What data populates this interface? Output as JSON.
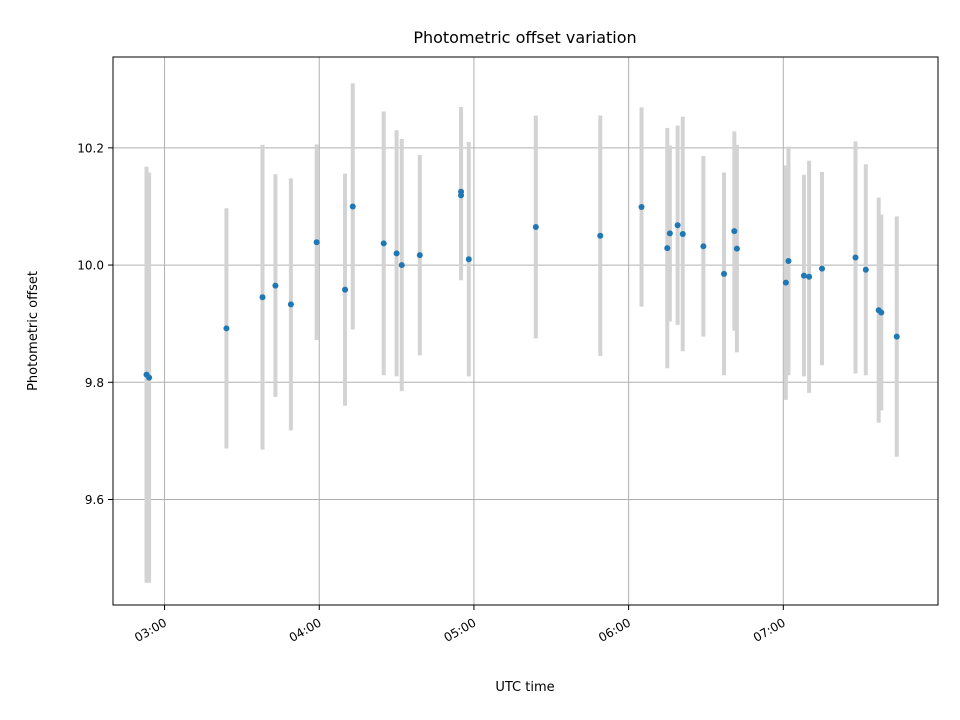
{
  "chart_data": {
    "type": "scatter",
    "title": "Photometric offset variation",
    "xlabel": "UTC time",
    "ylabel": "Photometric offset",
    "xlim": [
      "02:40",
      "08:00"
    ],
    "ylim": [
      9.42,
      10.355
    ],
    "grid": true,
    "legend": "none",
    "x_ticks": [
      "03:00",
      "04:00",
      "05:00",
      "06:00",
      "07:00"
    ],
    "y_ticks": [
      9.6,
      9.8,
      10.0,
      10.2
    ],
    "colors": {
      "marker": "#1f77b4",
      "errorbar": "#d3d3d3",
      "grid": "#b0b0b0"
    },
    "points": [
      {
        "t": "02:53",
        "y": 9.813,
        "err": 0.355
      },
      {
        "t": "02:54",
        "y": 9.808,
        "err": 0.35
      },
      {
        "t": "03:24",
        "y": 9.892,
        "err": 0.205
      },
      {
        "t": "03:38",
        "y": 9.945,
        "err": 0.26
      },
      {
        "t": "03:43",
        "y": 9.965,
        "err": 0.19
      },
      {
        "t": "03:49",
        "y": 9.933,
        "err": 0.215
      },
      {
        "t": "03:59",
        "y": 10.039,
        "err": 0.167
      },
      {
        "t": "04:10",
        "y": 9.958,
        "err": 0.198
      },
      {
        "t": "04:13",
        "y": 10.1,
        "err": 0.21
      },
      {
        "t": "04:25",
        "y": 10.037,
        "err": 0.225
      },
      {
        "t": "04:30",
        "y": 10.02,
        "err": 0.21
      },
      {
        "t": "04:32",
        "y": 10.0,
        "err": 0.215
      },
      {
        "t": "04:39",
        "y": 10.017,
        "err": 0.171
      },
      {
        "t": "04:55",
        "y": 10.125,
        "err": 0.145
      },
      {
        "t": "04:55",
        "y": 10.119,
        "err": 0.145
      },
      {
        "t": "04:58",
        "y": 10.01,
        "err": 0.2
      },
      {
        "t": "05:24",
        "y": 10.065,
        "err": 0.19
      },
      {
        "t": "05:49",
        "y": 10.05,
        "err": 0.205
      },
      {
        "t": "06:05",
        "y": 10.099,
        "err": 0.17
      },
      {
        "t": "06:15",
        "y": 10.029,
        "err": 0.205
      },
      {
        "t": "06:16",
        "y": 10.054,
        "err": 0.15
      },
      {
        "t": "06:19",
        "y": 10.068,
        "err": 0.17
      },
      {
        "t": "06:21",
        "y": 10.053,
        "err": 0.2
      },
      {
        "t": "06:29",
        "y": 10.032,
        "err": 0.154
      },
      {
        "t": "06:37",
        "y": 9.985,
        "err": 0.173
      },
      {
        "t": "06:41",
        "y": 10.058,
        "err": 0.17
      },
      {
        "t": "06:42",
        "y": 10.028,
        "err": 0.177
      },
      {
        "t": "07:01",
        "y": 9.97,
        "err": 0.2
      },
      {
        "t": "07:02",
        "y": 10.007,
        "err": 0.195
      },
      {
        "t": "07:08",
        "y": 9.982,
        "err": 0.172
      },
      {
        "t": "07:10",
        "y": 9.98,
        "err": 0.198
      },
      {
        "t": "07:15",
        "y": 9.994,
        "err": 0.165
      },
      {
        "t": "07:28",
        "y": 10.013,
        "err": 0.198
      },
      {
        "t": "07:32",
        "y": 9.992,
        "err": 0.18
      },
      {
        "t": "07:37",
        "y": 9.923,
        "err": 0.192
      },
      {
        "t": "07:38",
        "y": 9.919,
        "err": 0.167
      },
      {
        "t": "07:44",
        "y": 9.878,
        "err": 0.205
      }
    ]
  }
}
